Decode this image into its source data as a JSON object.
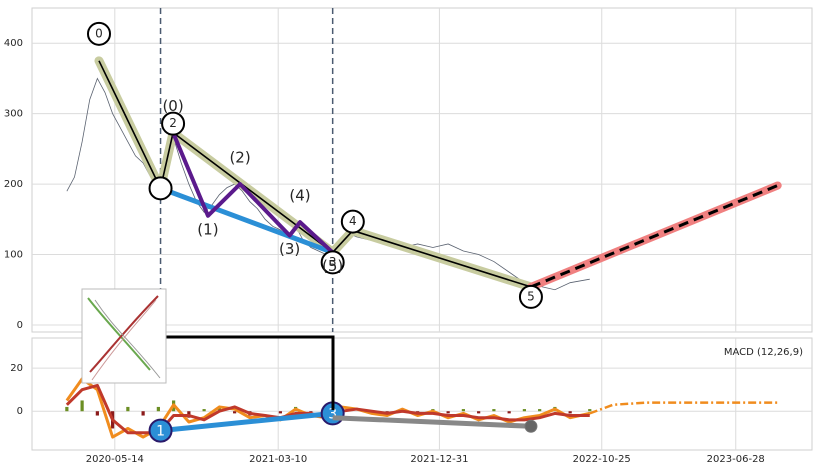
{
  "chart_data": [
    {
      "type": "line",
      "xlim": [
        "2019-12-14",
        "2023-11-15"
      ],
      "ylim": [
        -10,
        450
      ],
      "yticks": [
        0,
        100,
        200,
        300,
        400
      ],
      "grid": true,
      "x": [
        "2020-02-16",
        "2020-03-01",
        "2020-03-15",
        "2020-03-29",
        "2020-04-12",
        "2020-04-26",
        "2020-05-10",
        "2020-05-24",
        "2020-06-07",
        "2020-06-21",
        "2020-07-05",
        "2020-07-19",
        "2020-08-02",
        "2020-08-16",
        "2020-08-30",
        "2020-09-13",
        "2020-09-27",
        "2020-10-11",
        "2020-10-25",
        "2020-11-08",
        "2020-11-22",
        "2020-12-06",
        "2020-12-20",
        "2021-01-03",
        "2021-01-17",
        "2021-01-31",
        "2021-02-14",
        "2021-02-28",
        "2021-03-14",
        "2021-03-28",
        "2021-04-11",
        "2021-04-25",
        "2021-05-09",
        "2021-05-23",
        "2021-06-06",
        "2021-06-20",
        "2021-07-04",
        "2021-07-18",
        "2021-08-01",
        "2021-08-29",
        "2021-09-26",
        "2021-10-24",
        "2021-11-21",
        "2021-12-19",
        "2022-01-16",
        "2022-02-13",
        "2022-03-13",
        "2022-04-10",
        "2022-05-08",
        "2022-06-05",
        "2022-07-03",
        "2022-07-31",
        "2022-08-28",
        "2022-10-03"
      ],
      "series": [
        {
          "color": "#5a6270",
          "values": [
            190,
            210,
            260,
            320,
            350,
            330,
            300,
            280,
            260,
            240,
            230,
            210,
            195,
            230,
            265,
            230,
            200,
            175,
            160,
            170,
            185,
            195,
            200,
            190,
            175,
            165,
            150,
            140,
            135,
            125,
            140,
            120,
            110,
            105,
            100,
            110,
            120,
            130,
            125,
            120,
            115,
            110,
            115,
            110,
            115,
            105,
            100,
            90,
            75,
            60,
            55,
            50,
            60,
            65
          ]
        }
      ],
      "waves": [
        {
          "color": "#000000",
          "band_color": "#c8cca0",
          "labels": [
            "0",
            null,
            "2",
            "3",
            "4",
            "5"
          ],
          "x": [
            "2020-04-15",
            "2020-08-06",
            "2020-08-29",
            "2021-06-18",
            "2021-07-25",
            "2022-06-17"
          ],
          "values": [
            375,
            194,
            273,
            103,
            134,
            54
          ]
        },
        {
          "color": "#5b1a8c",
          "labels": [
            "(0)",
            "(1)",
            "(2)",
            "(3)",
            "(4)",
            "(5)"
          ],
          "x": [
            "2020-08-29",
            "2020-11-01",
            "2020-12-30",
            "2021-03-31",
            "2021-04-19",
            "2021-06-18"
          ],
          "values": [
            273,
            155,
            200,
            127,
            146,
            103
          ]
        }
      ],
      "trend": {
        "color": "#2b8fd6",
        "x": [
          "2020-08-06",
          "2021-06-18"
        ],
        "values": [
          194,
          103
        ]
      },
      "projection": {
        "color": "#f08080",
        "x": [
          "2022-06-17",
          "2023-09-13"
        ],
        "values": [
          54,
          198
        ]
      },
      "markers": [
        "2020-08-06",
        "2021-06-18"
      ]
    },
    {
      "type": "line",
      "title": "MACD (12,26,9)",
      "xlim": [
        "2019-12-14",
        "2023-11-15"
      ],
      "ylim": [
        -18,
        34
      ],
      "yticks": [
        0,
        20
      ],
      "grid": true,
      "xticks": [
        "2020-05-14",
        "2021-03-10",
        "2021-12-31",
        "2022-10-25",
        "2023-06-28"
      ],
      "x": [
        "2020-02-16",
        "2020-03-15",
        "2020-04-12",
        "2020-05-10",
        "2020-06-07",
        "2020-07-05",
        "2020-08-02",
        "2020-08-30",
        "2020-09-27",
        "2020-10-25",
        "2020-11-22",
        "2020-12-20",
        "2021-01-17",
        "2021-02-14",
        "2021-03-14",
        "2021-04-11",
        "2021-05-09",
        "2021-06-06",
        "2021-07-04",
        "2021-08-01",
        "2021-08-29",
        "2021-09-26",
        "2021-10-24",
        "2021-11-21",
        "2021-12-19",
        "2022-01-16",
        "2022-02-13",
        "2022-03-13",
        "2022-04-10",
        "2022-05-08",
        "2022-06-05",
        "2022-07-03",
        "2022-07-31",
        "2022-08-28",
        "2022-10-03"
      ],
      "series": [
        {
          "color": "#f08c1e",
          "values": [
            5,
            15,
            10,
            -12,
            -8,
            -12,
            -8,
            3,
            -5,
            -3,
            2,
            1,
            -3,
            -2,
            -4,
            1,
            -2,
            -3,
            2,
            1,
            -1,
            -2,
            1,
            -2,
            0,
            -3,
            -1,
            -4,
            -2,
            -5,
            -3,
            -2,
            1,
            -3,
            -1
          ]
        },
        {
          "color": "#c0392b",
          "values": [
            3,
            10,
            12,
            -4,
            -10,
            -10,
            -10,
            -2,
            -2,
            -4,
            0,
            2,
            -1,
            -2,
            -3,
            -1,
            -1,
            -3,
            0,
            1,
            0,
            -1,
            0,
            -1,
            -1,
            -2,
            -2,
            -3,
            -3,
            -4,
            -4,
            -3,
            -1,
            -2,
            -2
          ]
        }
      ],
      "histogram": {
        "colors": [
          "#6b8e23",
          "#8b1a1a"
        ],
        "values": [
          2,
          5,
          -2,
          -8,
          2,
          -2,
          2,
          5,
          -3,
          1,
          2,
          -1,
          -2,
          0,
          -1,
          2,
          -1,
          0,
          2,
          0,
          -1,
          -1,
          1,
          -1,
          1,
          -1,
          1,
          -1,
          1,
          -1,
          1,
          1,
          2,
          -1,
          1
        ]
      },
      "forecast": {
        "color": "#f08c1e",
        "x": [
          "2022-10-03",
          "2022-11-15",
          "2023-01-15",
          "2023-09-13"
        ],
        "values": [
          -1,
          3,
          4,
          4
        ]
      },
      "trends": [
        {
          "color": "#2b8fd6",
          "labels": [
            "1",
            "3"
          ],
          "x": [
            "2020-08-06",
            "2021-06-18"
          ],
          "values": [
            -9,
            -1
          ]
        },
        {
          "color": "#888888",
          "x": [
            "2021-06-18",
            "2022-06-17"
          ],
          "values": [
            -3,
            -7
          ]
        }
      ]
    }
  ]
}
